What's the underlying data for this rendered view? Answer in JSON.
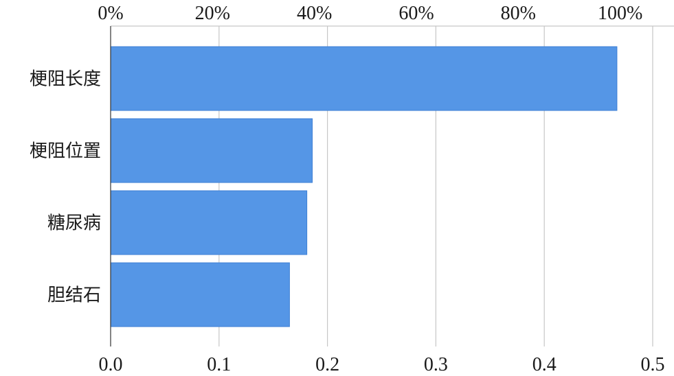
{
  "chart_data": {
    "type": "bar",
    "orientation": "horizontal",
    "categories": [
      "梗阻长度",
      "梗阻位置",
      "糖尿病",
      "胆结石"
    ],
    "values": [
      0.467,
      0.186,
      0.181,
      0.165
    ],
    "xlim": [
      0,
      0.5
    ],
    "x_ticks": [
      "0.0",
      "0.1",
      "0.2",
      "0.3",
      "0.4",
      "0.5"
    ],
    "x_ticks_top": [
      "0%",
      "20%",
      "40%",
      "60%",
      "80%",
      "100%"
    ],
    "grid": true,
    "bar_color": "#5596e6",
    "title": "",
    "xlabel": "",
    "ylabel": ""
  }
}
